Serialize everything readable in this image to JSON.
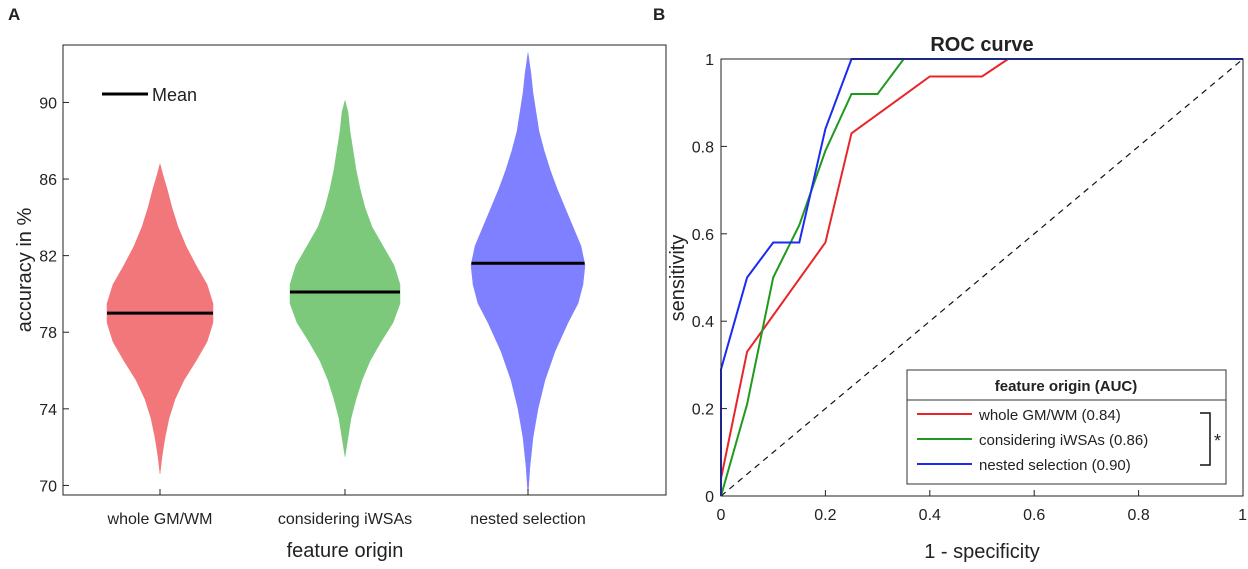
{
  "colors": {
    "red": "#f2777a",
    "green": "#7cc97c",
    "blue": "#7f80ff",
    "red_line": "#e8262a",
    "green_line": "#1f9a1f",
    "blue_line": "#1c2bf2"
  },
  "panel_a": {
    "panel_letter": "A",
    "chart_data": {
      "type": "violin",
      "xlabel": "feature origin",
      "ylabel": "accuracy in %",
      "ylim": [
        69.5,
        93
      ],
      "yticks": [
        70,
        74,
        78,
        82,
        86,
        90
      ],
      "categories": [
        "whole GM/WM",
        "considering iWSAs",
        "nested selection"
      ],
      "means": [
        79.0,
        80.1,
        81.6
      ],
      "ranges": [
        [
          70.6,
          86.8
        ],
        [
          71.5,
          90.1
        ],
        [
          69.5,
          92.6
        ]
      ],
      "legend": "Mean"
    }
  },
  "panel_b": {
    "panel_letter": "B",
    "chart_data": {
      "type": "line",
      "title": "ROC curve",
      "xlabel": "1 - specificity",
      "ylabel": "sensitivity",
      "xlim": [
        0,
        1
      ],
      "ylim": [
        0,
        1
      ],
      "xticks": [
        0,
        0.2,
        0.4,
        0.6,
        0.8,
        1
      ],
      "yticks": [
        0,
        0.2,
        0.4,
        0.6,
        0.8,
        1
      ],
      "legend_title": "feature origin (AUC)",
      "significance": "*",
      "series": [
        {
          "name": "whole GM/WM (0.84)",
          "color_key": "red_line",
          "x": [
            0,
            0,
            0.05,
            0.2,
            0.25,
            0.4,
            0.5,
            0.55,
            1
          ],
          "y": [
            0,
            0.04,
            0.33,
            0.58,
            0.83,
            0.96,
            0.96,
            1,
            1
          ]
        },
        {
          "name": "considering iWSAs (0.86)",
          "color_key": "green_line",
          "x": [
            0,
            0.05,
            0.1,
            0.15,
            0.2,
            0.25,
            0.3,
            0.35,
            1
          ],
          "y": [
            0,
            0.21,
            0.5,
            0.62,
            0.79,
            0.92,
            0.92,
            1,
            1
          ]
        },
        {
          "name": "nested selection (0.90)",
          "color_key": "blue_line",
          "x": [
            0,
            0,
            0.05,
            0.1,
            0.15,
            0.2,
            0.25,
            1
          ],
          "y": [
            0,
            0.29,
            0.5,
            0.58,
            0.58,
            0.84,
            1,
            1
          ]
        }
      ],
      "diagonal": [
        [
          0,
          0
        ],
        [
          1,
          1
        ]
      ]
    }
  }
}
